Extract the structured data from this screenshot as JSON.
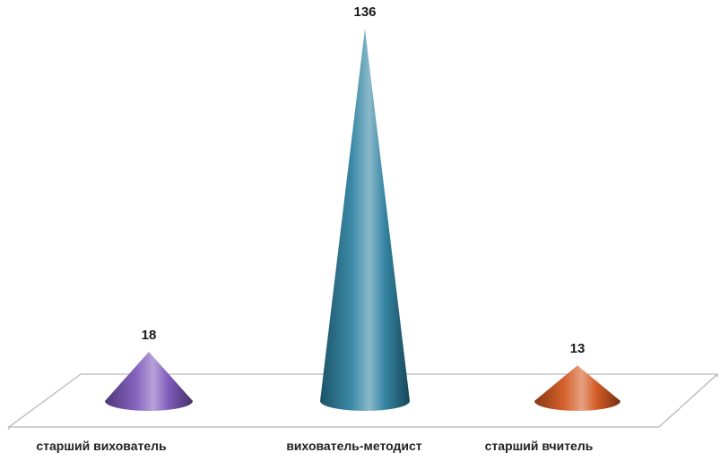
{
  "chart_data": {
    "type": "bar",
    "bar_shape": "cone",
    "categories": [
      "старший вихователь",
      "вихователь-методист",
      "старший вчитель"
    ],
    "values": [
      18,
      136,
      13
    ],
    "data_labels": [
      "18",
      "136",
      "13"
    ],
    "colors": [
      "#7a55b8",
      "#2a7f9e",
      "#d2541c"
    ],
    "title": "",
    "xlabel": "",
    "ylabel": "",
    "ylim": [
      0,
      136
    ],
    "grid": false,
    "legend": "none"
  }
}
